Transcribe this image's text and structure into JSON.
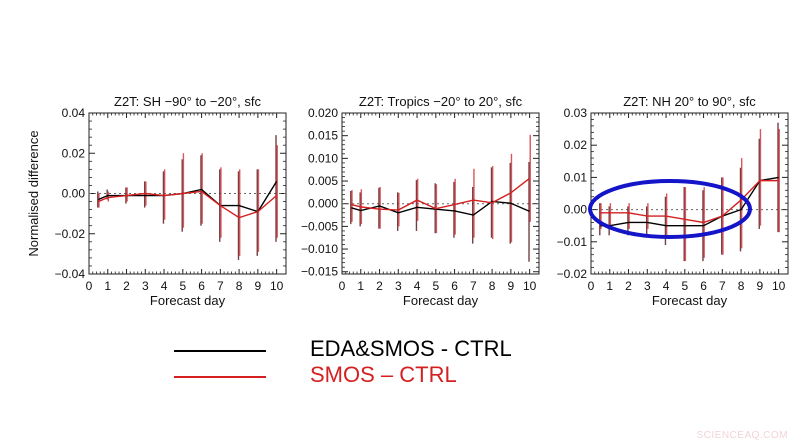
{
  "chart_data": [
    {
      "type": "line",
      "title": "Z2T: SH −90° to −20°, sfc",
      "xlabel": "Forecast day",
      "ylabel": "Normalised difference",
      "xlim": [
        0,
        10.5
      ],
      "ylim": [
        -0.04,
        0.04
      ],
      "yticks": [
        "0.04",
        "0.02",
        "0.00",
        "−0.02",
        "−0.04"
      ],
      "ytick_values": [
        0.04,
        0.02,
        0.0,
        -0.02,
        -0.04
      ],
      "xticks": [
        "0",
        "1",
        "2",
        "3",
        "4",
        "5",
        "6",
        "7",
        "8",
        "9",
        "10"
      ],
      "x": [
        0.5,
        1,
        2,
        3,
        4,
        5,
        6,
        7,
        8,
        9,
        10
      ],
      "reference_line": 0.0,
      "series": [
        {
          "name": "EDA&SMOS - CTRL",
          "color": "#000000",
          "values": [
            -0.003,
            -0.001,
            -0.001,
            -0.001,
            -0.001,
            0.0,
            0.002,
            -0.006,
            -0.006,
            -0.009,
            0.006
          ],
          "error_low": [
            -0.007,
            -0.003,
            -0.005,
            -0.007,
            -0.015,
            -0.019,
            -0.016,
            -0.024,
            -0.033,
            -0.031,
            -0.024
          ],
          "error_high": [
            0.001,
            0.002,
            0.003,
            0.006,
            0.011,
            0.017,
            0.019,
            0.012,
            0.011,
            0.012,
            0.029
          ]
        },
        {
          "name": "SMOS – CTRL",
          "color": "#d42020",
          "values": [
            -0.004,
            -0.002,
            -0.001,
            0.0,
            -0.001,
            0.0,
            0.001,
            -0.006,
            -0.012,
            -0.009,
            -0.001
          ],
          "error_low": [
            -0.007,
            -0.004,
            -0.004,
            -0.006,
            -0.013,
            -0.017,
            -0.015,
            -0.022,
            -0.031,
            -0.029,
            -0.022
          ],
          "error_high": [
            0.0,
            0.001,
            0.003,
            0.006,
            0.012,
            0.02,
            0.02,
            0.013,
            0.012,
            0.012,
            0.024
          ]
        }
      ]
    },
    {
      "type": "line",
      "title": "Z2T: Tropics −20° to 20°, sfc",
      "xlabel": "Forecast day",
      "ylabel": "",
      "xlim": [
        0,
        10.5
      ],
      "ylim": [
        -0.0155,
        0.02
      ],
      "yticks": [
        "0.020",
        "0.015",
        "0.010",
        "0.005",
        "0.000",
        "−0.005",
        "−0.010",
        "−0.015"
      ],
      "ytick_values": [
        0.02,
        0.015,
        0.01,
        0.005,
        0.0,
        -0.005,
        -0.01,
        -0.015
      ],
      "xticks": [
        "0",
        "1",
        "2",
        "3",
        "4",
        "5",
        "6",
        "7",
        "8",
        "9",
        "10"
      ],
      "x": [
        0.5,
        1,
        2,
        3,
        4,
        5,
        6,
        7,
        8,
        9,
        10
      ],
      "reference_line": 0.0,
      "series": [
        {
          "name": "EDA&SMOS - CTRL",
          "color": "#000000",
          "values": [
            -0.0009,
            -0.0015,
            -0.0005,
            -0.002,
            -0.0008,
            -0.0012,
            -0.0016,
            -0.0025,
            0.0005,
            0.0001,
            -0.0017
          ],
          "error_low": [
            -0.0045,
            -0.005,
            -0.0055,
            -0.006,
            -0.006,
            -0.0065,
            -0.0075,
            -0.0088,
            -0.0075,
            -0.0088,
            -0.0128
          ],
          "error_high": [
            0.0028,
            0.0025,
            0.0035,
            0.0025,
            0.0052,
            0.0045,
            0.0048,
            0.0037,
            0.008,
            0.009,
            0.0092
          ]
        },
        {
          "name": "SMOS – CTRL",
          "color": "#d42020",
          "values": [
            -0.0002,
            -0.0007,
            -0.0012,
            -0.0014,
            0.0008,
            -0.0011,
            -0.0002,
            0.0008,
            0.0002,
            0.0024,
            0.0056
          ],
          "error_low": [
            -0.004,
            -0.0045,
            -0.0055,
            -0.005,
            -0.0038,
            -0.0065,
            -0.0068,
            -0.0075,
            -0.0078,
            -0.0085,
            -0.004
          ],
          "error_high": [
            0.003,
            0.0032,
            0.0037,
            0.0024,
            0.0055,
            0.0043,
            0.0055,
            0.0077,
            0.0083,
            0.011,
            0.0152
          ]
        }
      ]
    },
    {
      "type": "line",
      "title": "Z2T: NH 20° to 90°, sfc",
      "xlabel": "Forecast day",
      "ylabel": "",
      "xlim": [
        0,
        10.5
      ],
      "ylim": [
        -0.02,
        0.03
      ],
      "yticks": [
        "0.03",
        "0.02",
        "0.01",
        "0.00",
        "−0.01",
        "−0.02"
      ],
      "ytick_values": [
        0.03,
        0.02,
        0.01,
        0.0,
        -0.01,
        -0.02
      ],
      "xticks": [
        "0",
        "1",
        "2",
        "3",
        "4",
        "5",
        "6",
        "7",
        "8",
        "9",
        "10"
      ],
      "x": [
        0.5,
        1,
        2,
        3,
        4,
        5,
        6,
        7,
        8,
        9,
        10
      ],
      "reference_line": 0.0,
      "annotation": "blue ellipse highlighting forecast days 0–8 near zero",
      "series": [
        {
          "name": "EDA&SMOS - CTRL",
          "color": "#000000",
          "values": [
            -0.005,
            -0.005,
            -0.004,
            -0.004,
            -0.005,
            -0.005,
            -0.005,
            -0.002,
            0.0,
            0.009,
            0.01
          ],
          "error_low": [
            -0.008,
            -0.008,
            -0.008,
            -0.008,
            -0.011,
            -0.016,
            -0.016,
            -0.014,
            -0.013,
            -0.006,
            -0.007
          ],
          "error_high": [
            0.002,
            0.001,
            0.001,
            0.001,
            0.004,
            0.007,
            0.006,
            0.01,
            0.013,
            0.022,
            0.027
          ]
        },
        {
          "name": "SMOS – CTRL",
          "color": "#d42020",
          "values": [
            -0.001,
            -0.001,
            -0.001,
            -0.002,
            -0.002,
            -0.003,
            -0.004,
            -0.002,
            0.003,
            0.009,
            0.009
          ],
          "error_low": [
            -0.006,
            -0.006,
            -0.006,
            -0.006,
            -0.009,
            -0.016,
            -0.015,
            -0.014,
            -0.012,
            -0.005,
            -0.007
          ],
          "error_high": [
            0.002,
            0.002,
            0.002,
            0.002,
            0.005,
            0.007,
            0.007,
            0.01,
            0.016,
            0.025,
            0.025
          ]
        }
      ]
    }
  ],
  "legend": {
    "items": [
      {
        "label": "EDA&SMOS  - CTRL",
        "color": "#000000"
      },
      {
        "label": "SMOS – CTRL",
        "color": "#d42020"
      }
    ]
  },
  "highlight": {
    "color": "#1414c8"
  },
  "watermark": "SCIENCEAQ.COM"
}
